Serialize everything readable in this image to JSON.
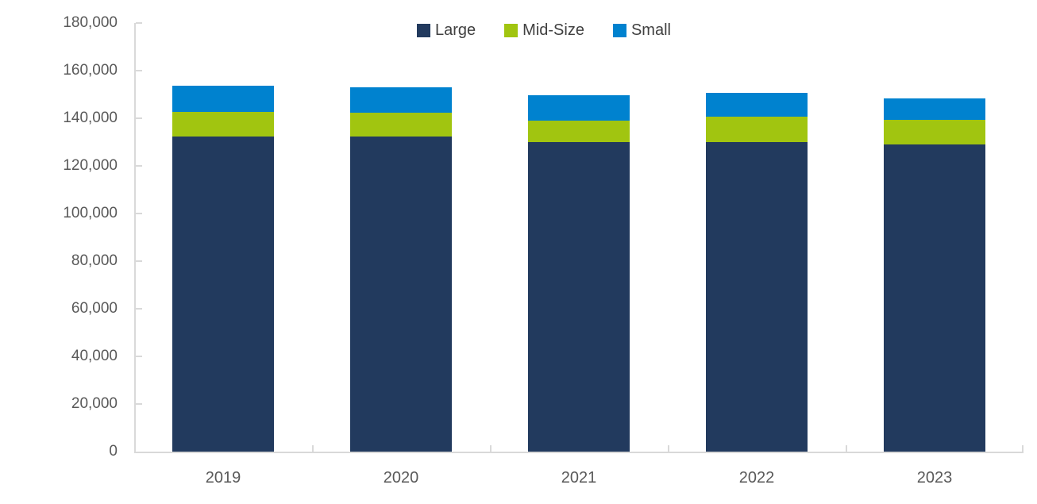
{
  "chart_data": {
    "type": "bar",
    "stacked": true,
    "title": "",
    "xlabel": "",
    "ylabel": "",
    "categories": [
      "2019",
      "2020",
      "2021",
      "2022",
      "2023"
    ],
    "series": [
      {
        "name": "Large",
        "color": "#223A5E",
        "values": [
          132300,
          132300,
          129900,
          130100,
          129000
        ]
      },
      {
        "name": "Mid-Size",
        "color": "#A1C510",
        "values": [
          10500,
          10000,
          9200,
          10500,
          10200
        ]
      },
      {
        "name": "Small",
        "color": "#0082CF",
        "values": [
          10900,
          10800,
          10700,
          10100,
          9300
        ]
      }
    ],
    "totals": [
      153700,
      153100,
      149800,
      150700,
      148500
    ],
    "ylim": [
      0,
      180000
    ],
    "y_tick_step": 20000,
    "y_tick_labels": [
      "0",
      "20,000",
      "40,000",
      "60,000",
      "80,000",
      "100,000",
      "120,000",
      "140,000",
      "160,000",
      "180,000"
    ],
    "grid": false,
    "legend_position": "top-center",
    "colors": {
      "background": "#FFFFFF",
      "axis_line": "#D9D9D9",
      "axis_label_text": "#595959",
      "legend_text": "#404040"
    }
  }
}
